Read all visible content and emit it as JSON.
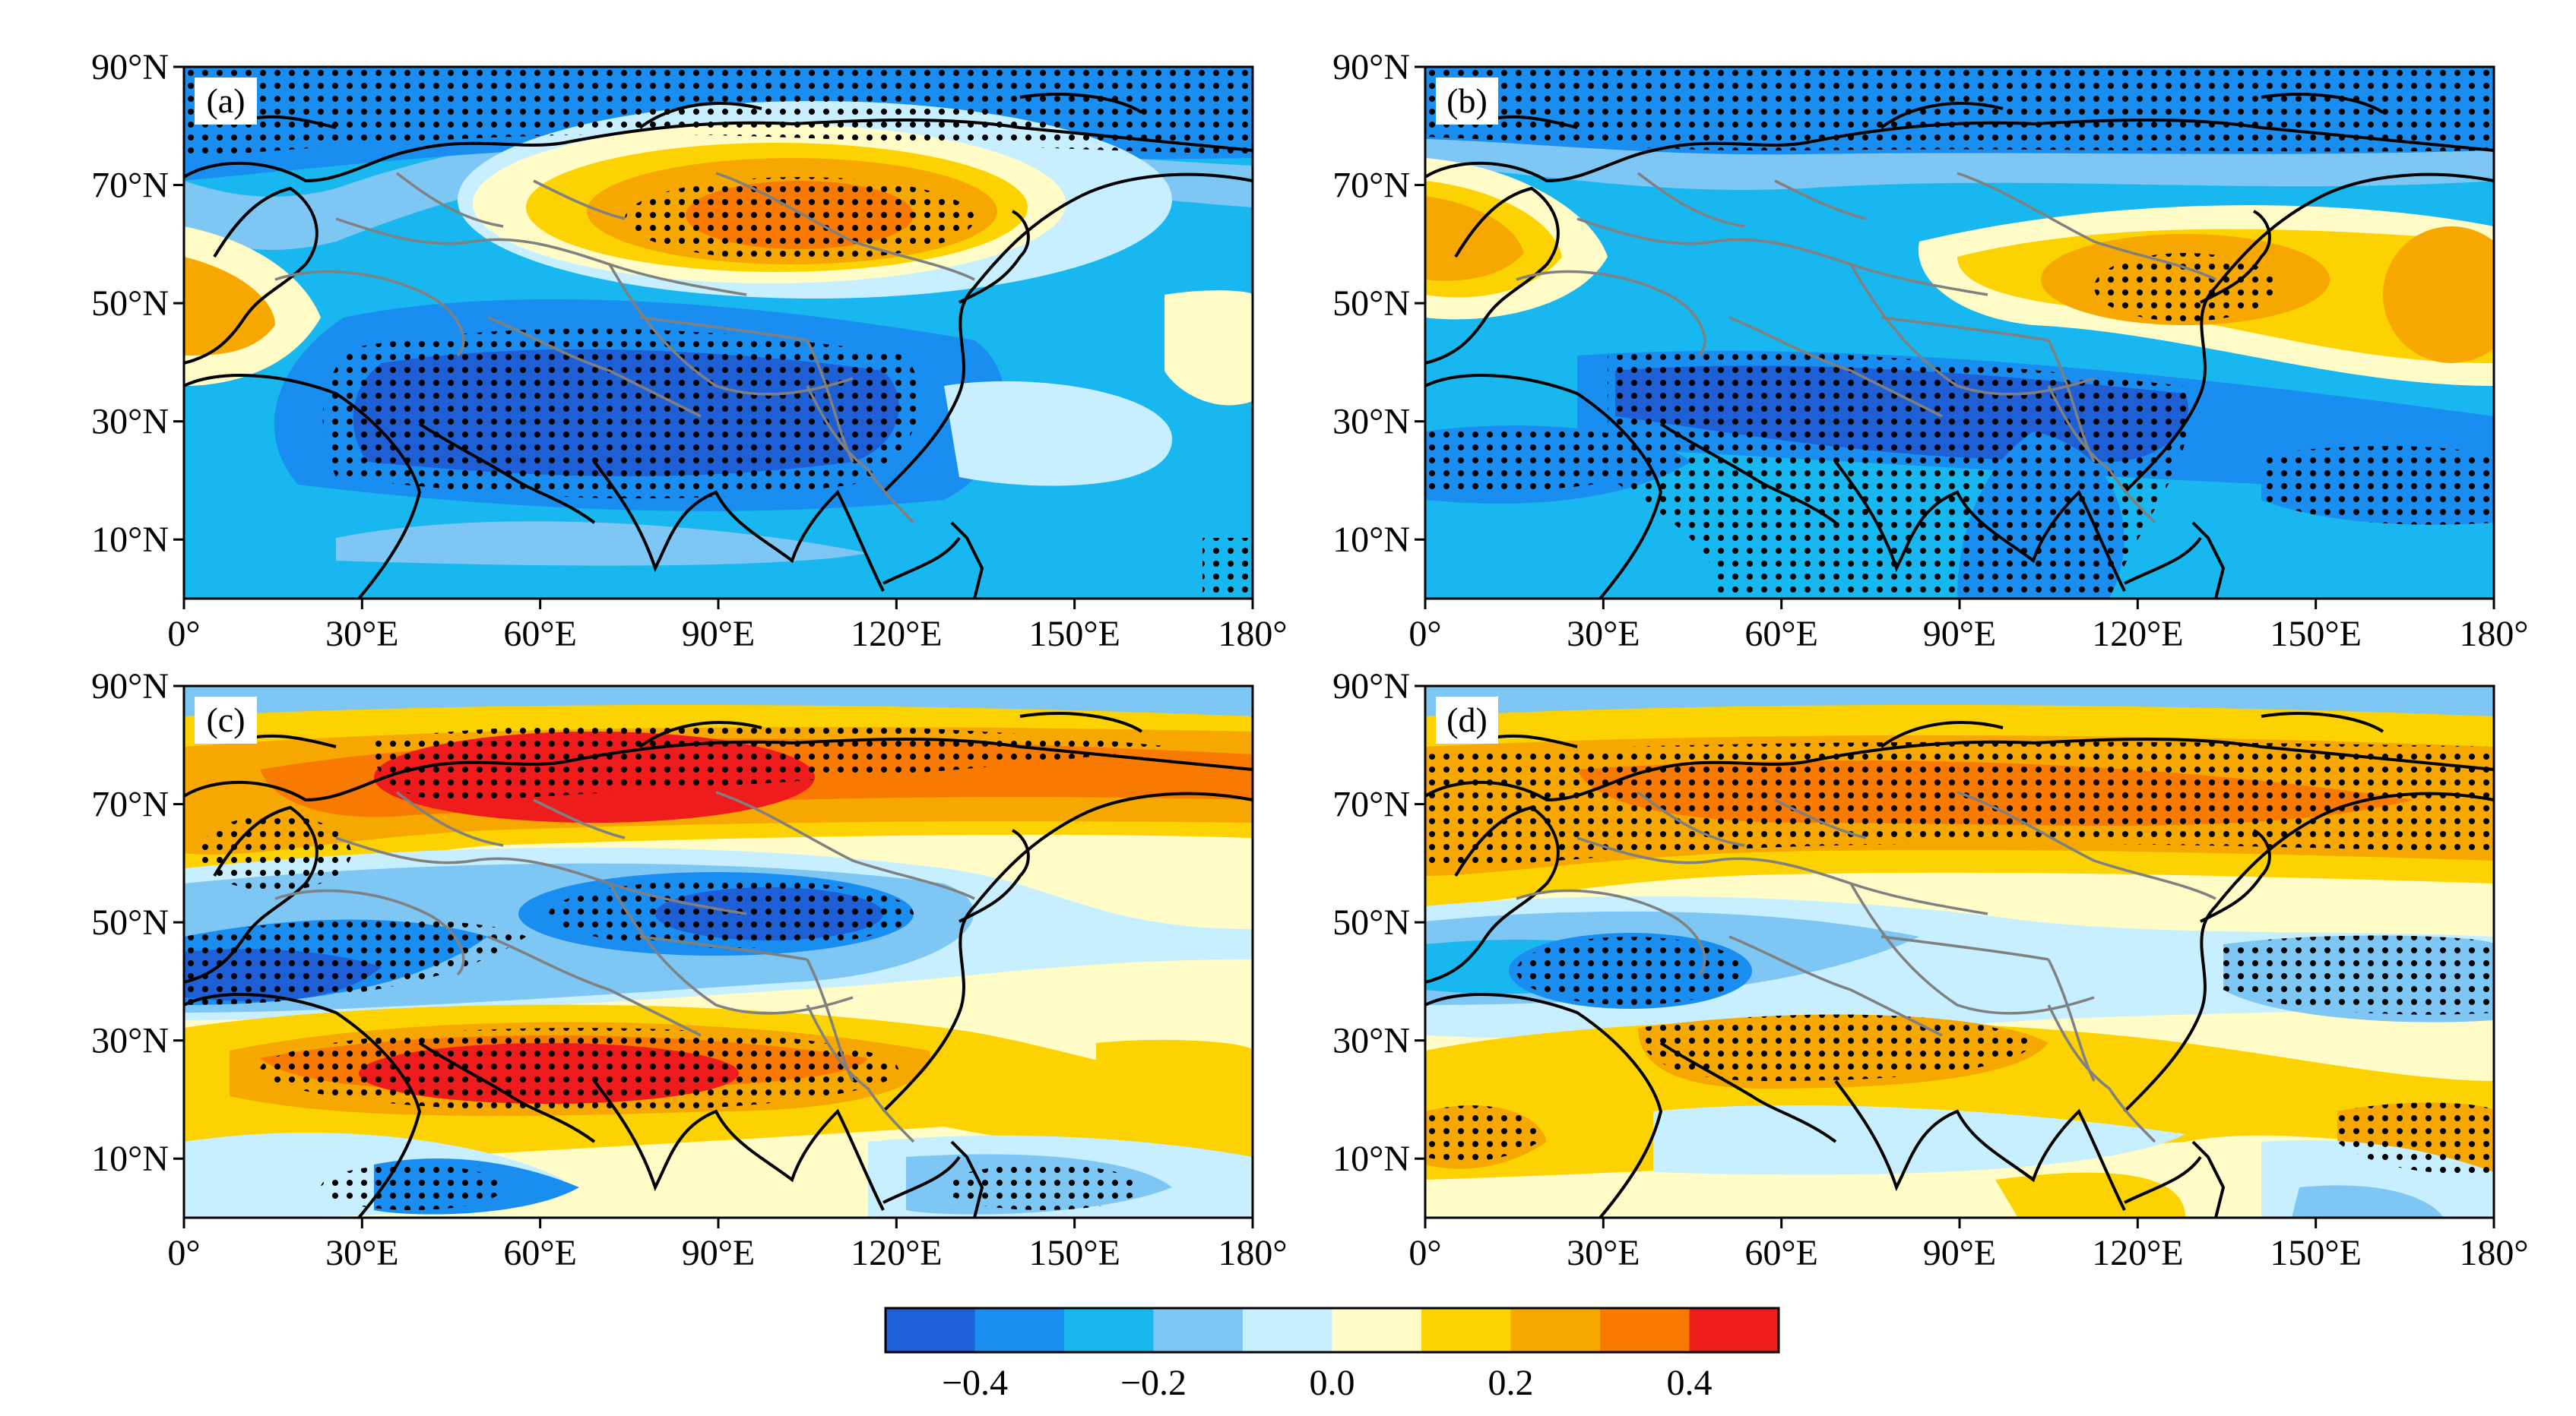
{
  "panels": [
    {
      "id": "a",
      "label": "(a)"
    },
    {
      "id": "b",
      "label": "(b)"
    },
    {
      "id": "c",
      "label": "(c)"
    },
    {
      "id": "d",
      "label": "(d)"
    }
  ],
  "axes": {
    "lat_ticks": [
      "90°N",
      "70°N",
      "50°N",
      "30°N",
      "10°N"
    ],
    "lon_ticks": [
      "0°",
      "30°E",
      "60°E",
      "90°E",
      "120°E",
      "150°E",
      "180°"
    ],
    "lat_range": [
      0,
      90
    ],
    "lon_range": [
      0,
      180
    ]
  },
  "colorbar": {
    "levels": [
      -0.5,
      -0.4,
      -0.3,
      -0.2,
      -0.1,
      0.0,
      0.1,
      0.2,
      0.3,
      0.4,
      0.5
    ],
    "tick_labels": [
      "−0.4",
      "−0.2",
      "0.0",
      "0.2",
      "0.4"
    ],
    "tick_values": [
      -0.4,
      -0.2,
      0.0,
      0.2,
      0.4
    ],
    "colors": [
      "#1f5fd6",
      "#1a8ef0",
      "#19b7ef",
      "#7ec6f3",
      "#c8efff",
      "#fffcc8",
      "#fcd200",
      "#f6a800",
      "#f97a00",
      "#ee1c1c"
    ]
  },
  "legend": {
    "stipple": "black dots",
    "coastline_color": "#000000",
    "border_color": "#808080"
  }
}
